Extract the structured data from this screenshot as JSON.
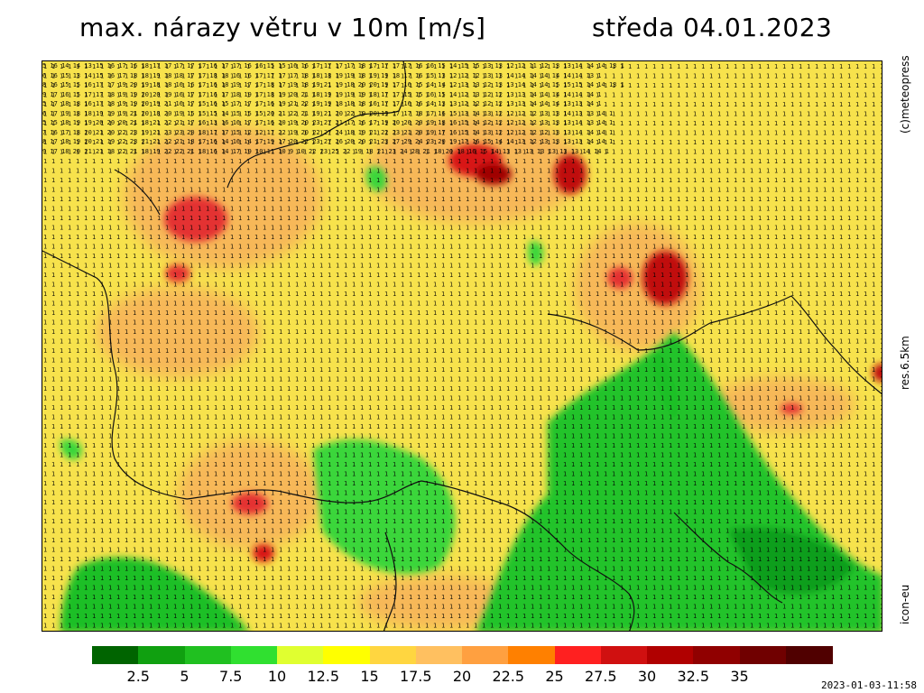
{
  "header": {
    "title": "max. nárazy větru v 10m [m/s]",
    "date": "středa 04.01.2023"
  },
  "side_labels": {
    "copyright": "(c)meteopress",
    "resolution": "res.6.5km",
    "model": "icon-eu"
  },
  "legend": {
    "colors": [
      "#006400",
      "#10a010",
      "#20c020",
      "#30e030",
      "#e0ff30",
      "#ffff00",
      "#ffd640",
      "#ffc060",
      "#ffa040",
      "#ff8000",
      "#ff2020",
      "#d01010",
      "#b00000",
      "#900000",
      "#700000",
      "#500000"
    ],
    "ticks": [
      "2.5",
      "5",
      "7.5",
      "10",
      "12.5",
      "15",
      "17.5",
      "20",
      "22.5",
      "25",
      "27.5",
      "30",
      "32.5",
      "35"
    ]
  },
  "map": {
    "grid_note": "values in m/s",
    "sample_rows": [
      "5 16 14 14 13 15 16 17 16 18 17 17 17 17 17 16 17 17 16 16 15 15 16 16 17 17 17 17 18 17 17 17 17 16 16 15 14 15 15 13 13 12 12 11 12 13 13 14 14 14 13 1",
      "6 16 15 13 14 15 16 17 18 18 19 18 18 17 17 18 18 16 16 17 17 17 17 18 18 18 19 19 18 19 19 18 17 16 15 13 12 12 12 13 13 14 14 14 14 14 14 14 13 1",
      "8 16 15 15 16 17 17 19 20 19 18 18 16 16 17 16 18 19 17 17 18 17 19 18 19 21 19 18 20 20 19 17 16 15 14 14 12 13 13 12 13 13 14 14 14 15 15 15 14 14 13 1",
      "9 17 16 15 17 17 18 19 19 20 20 19 16 17 17 16 17 18 19 17 18 19 20 21 18 19 19 19 19 18 17 17 15 15 16 15 14 12 13 12 12 13 13 14 14 14 14 14 14 1",
      "5 17 18 18 16 17 18 19 19 20 19 21 16 17 15 16 15 17 17 17 16 19 21 22 19 19 18 18 18 16 17 17 16 16 14 13 13 12 12 12 12 13 13 14 14 14 13 13 14 1",
      "6 17 19 18 18 19 19 19 21 20 18 20 19 15 15 15 14 15 15 15 20 21 22 21 19 21 20 22 19 20 19 17 17 18 17 16 15 13 14 13 12 12 12 12 13 13 14 13 13 14 1",
      "5 15 18 19 19 20 20 20 21 18 21 22 21 17 16 13 16 16 17 17 16 20 19 20 23 27 21 17 16 17 19 20 20 20 19 18 16 15 14 12 12 12 12 12 13 13 13 14 13 14 1",
      "7 16 17 18 20 21 20 22 23 19 21 23 23 20 18 17 17 15 12 12 17 22 19 20 22 27 24 18 19 21 22 23 21 20 19 17 16 15 14 13 12 12 12 12 12 13 13 14 14 14 1",
      "8 17 18 19 20 21 19 22 23 21 21 22 21 18 17 16 14 16 14 17 19 17 20 22 23 27 26 20 20 21 23 27 29 24 23 20 19 17 16 15 14 14 13 12 13 13 13 13 14 14 1",
      "9 17 18 20 21 21 18 22 21 18 19 22 22 21 18 16 14 17 19 10 11 10 9 10 22 23 25 22 19 18 21 23 24 28 21 18 20 18 16 15 14 13 13 13 13 13 13 13 14 14 1"
    ]
  }
}
